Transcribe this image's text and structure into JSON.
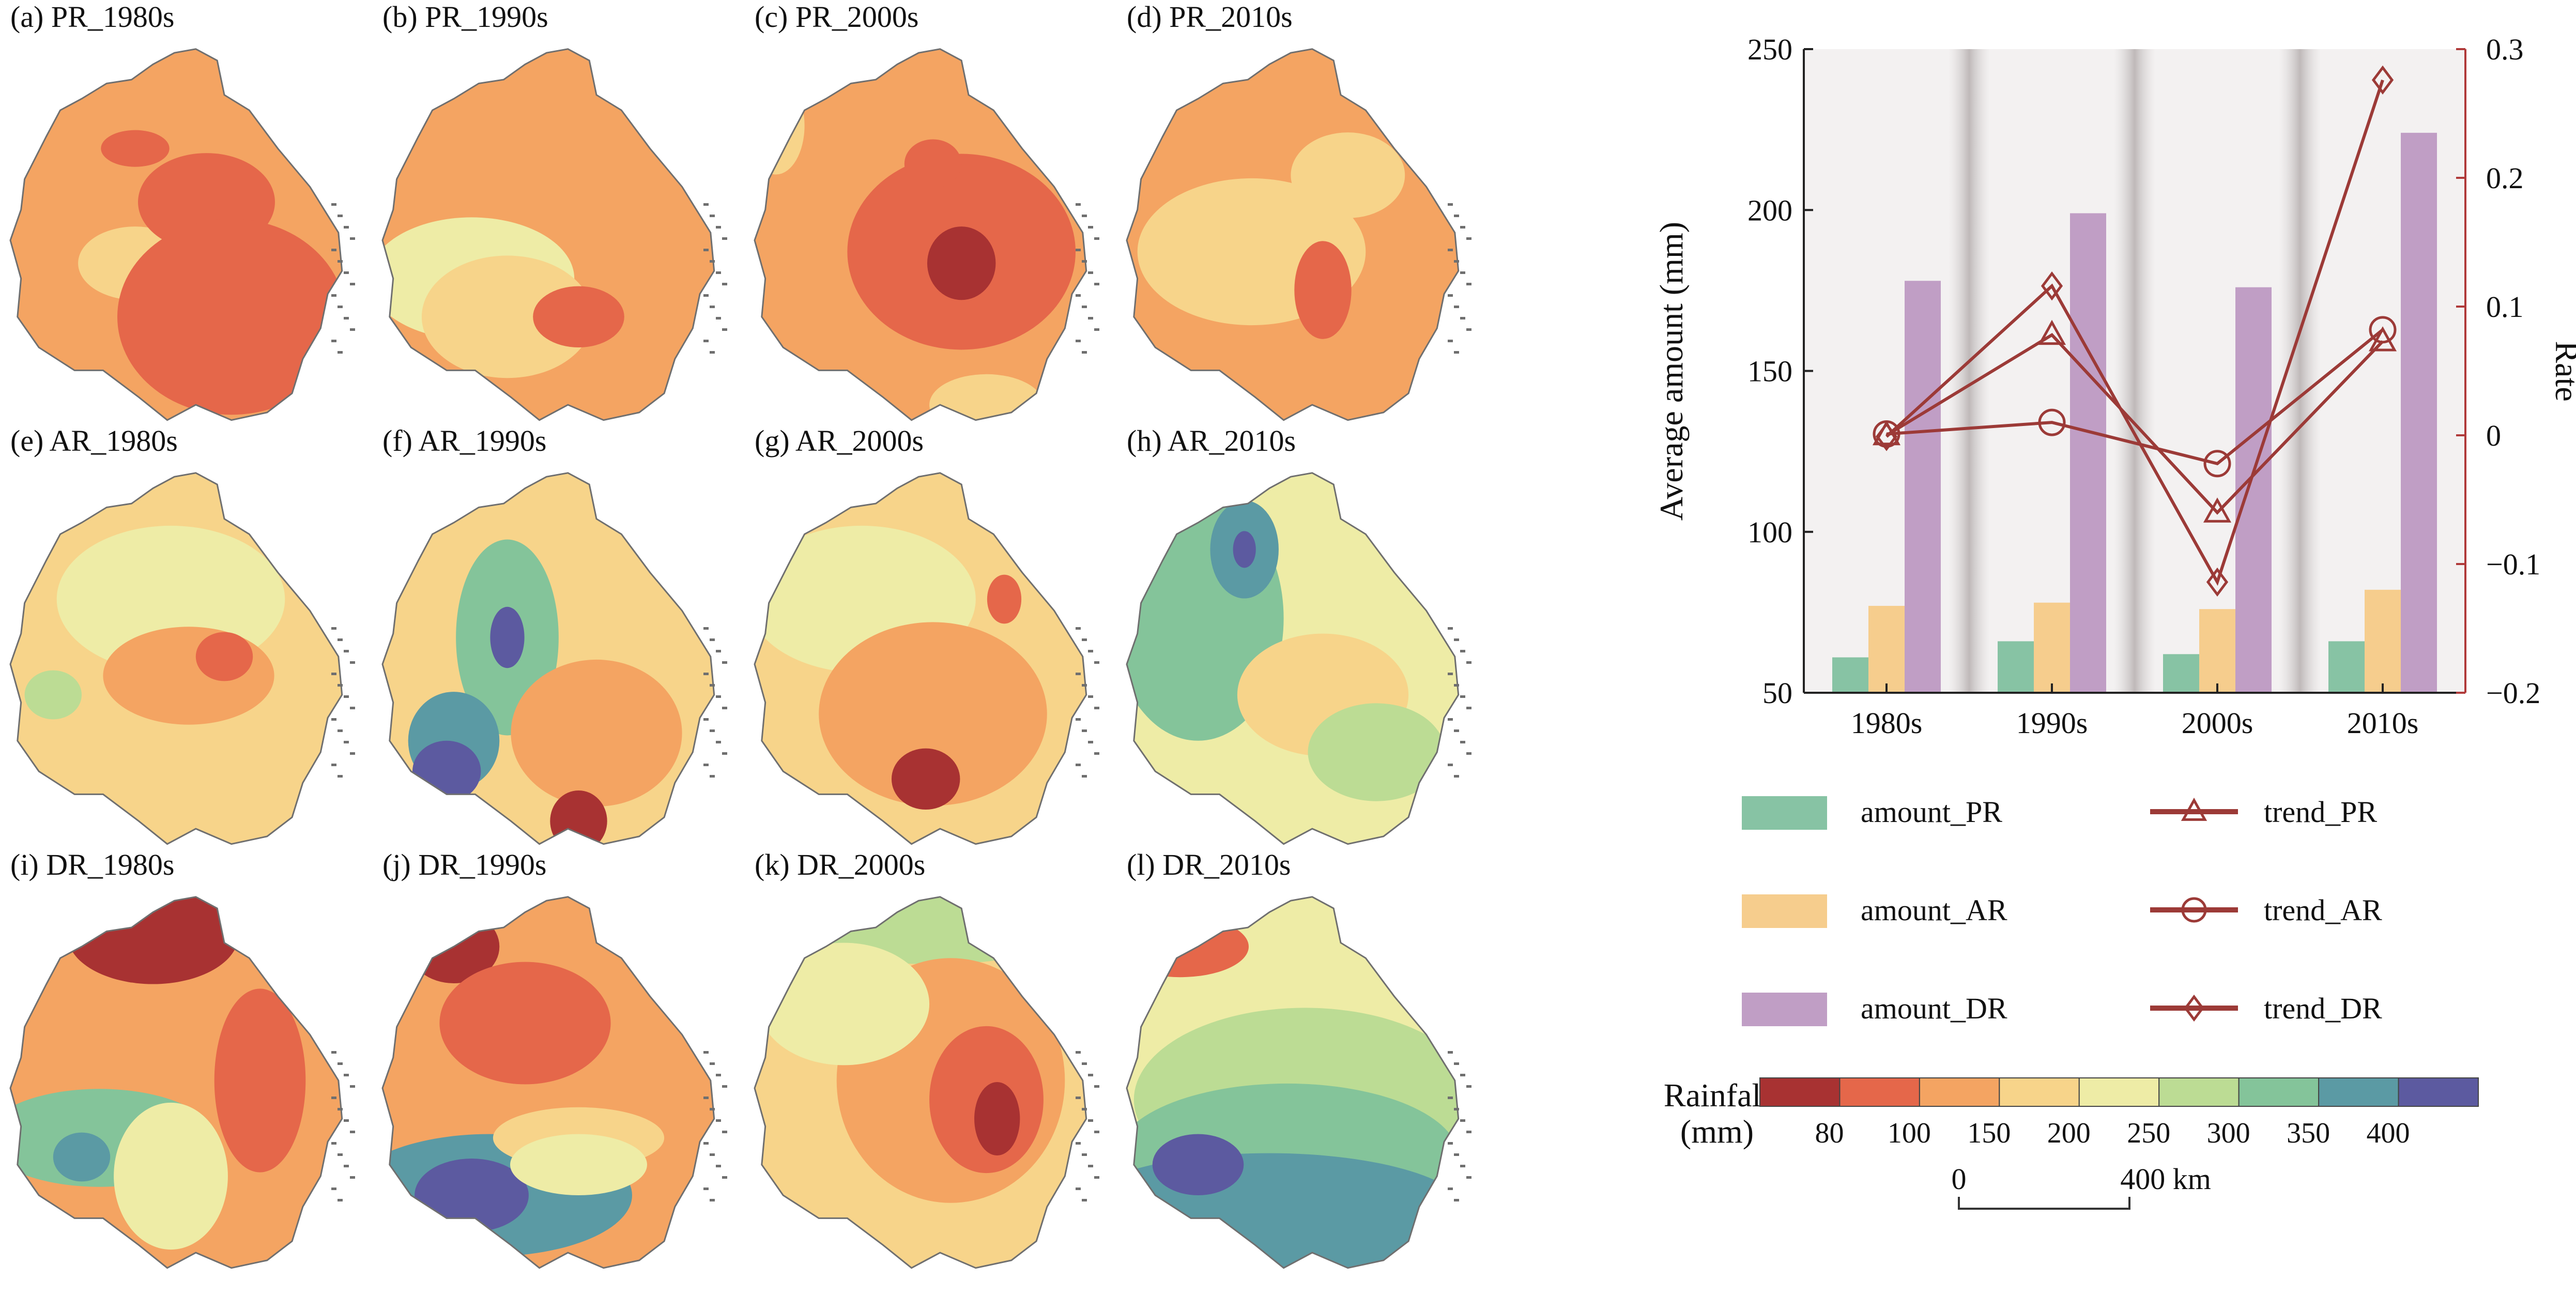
{
  "panels": [
    {
      "label": "(a) PR_1980s",
      "period": "PR",
      "decade": "1980s"
    },
    {
      "label": "(b) PR_1990s",
      "period": "PR",
      "decade": "1990s"
    },
    {
      "label": "(c) PR_2000s",
      "period": "PR",
      "decade": "2000s"
    },
    {
      "label": "(d) PR_2010s",
      "period": "PR",
      "decade": "2010s"
    },
    {
      "label": "(e) AR_1980s",
      "period": "AR",
      "decade": "1980s"
    },
    {
      "label": "(f) AR_1990s",
      "period": "AR",
      "decade": "1990s"
    },
    {
      "label": "(g) AR_2000s",
      "period": "AR",
      "decade": "2000s"
    },
    {
      "label": "(h) AR_2010s",
      "period": "AR",
      "decade": "2010s"
    },
    {
      "label": "(i) DR_1980s",
      "period": "DR",
      "decade": "1980s"
    },
    {
      "label": "(j) DR_1990s",
      "period": "DR",
      "decade": "1990s"
    },
    {
      "label": "(k) DR_2000s",
      "period": "DR",
      "decade": "2000s"
    },
    {
      "label": "(l) DR_2010s",
      "period": "DR",
      "decade": "2010s"
    }
  ],
  "colorbar": {
    "title_line1": "Rainfall",
    "title_line2": "(mm)",
    "colors": [
      "#a83232",
      "#e5674a",
      "#f4a462",
      "#f7d48a",
      "#eeeca6",
      "#bcdc94",
      "#84c49a",
      "#5b9aa4",
      "#5c5aa0"
    ],
    "ticks": [
      "80",
      "100",
      "150",
      "200",
      "250",
      "300",
      "350",
      "400"
    ]
  },
  "scalebar": {
    "left_label": "0",
    "right_label": "400 km"
  },
  "chart_data": {
    "type": "bar",
    "categories": [
      "1980s",
      "1990s",
      "2000s",
      "2010s"
    ],
    "ylabel": "Average amount (mm)",
    "y2label": "Rate",
    "ylim": [
      50,
      250
    ],
    "y2lim": [
      -0.2,
      0.3
    ],
    "yticks": [
      "50",
      "100",
      "150",
      "200",
      "250"
    ],
    "y2ticks": [
      "−0.2",
      "−0.1",
      "0",
      "0.1",
      "0.2",
      "0.3"
    ],
    "series": [
      {
        "name": "amount_PR",
        "type": "bar",
        "axis": "left",
        "color": "#87c3a4",
        "values": [
          61,
          66,
          62,
          66
        ]
      },
      {
        "name": "amount_AR",
        "type": "bar",
        "axis": "left",
        "color": "#f6cd8d",
        "values": [
          77,
          78,
          76,
          82
        ]
      },
      {
        "name": "amount_DR",
        "type": "bar",
        "axis": "left",
        "color": "#c09ec5",
        "values": [
          178,
          199,
          176,
          224
        ]
      },
      {
        "name": "trend_PR",
        "type": "line",
        "axis": "right",
        "marker": "triangle",
        "color": "#9c3a37",
        "values": [
          0.0,
          0.078,
          -0.06,
          0.073
        ]
      },
      {
        "name": "trend_AR",
        "type": "line",
        "axis": "right",
        "marker": "circle",
        "color": "#9c3a37",
        "values": [
          0.001,
          0.01,
          -0.022,
          0.082
        ]
      },
      {
        "name": "trend_DR",
        "type": "line",
        "axis": "right",
        "marker": "diamond",
        "color": "#9c3a37",
        "values": [
          -0.001,
          0.116,
          -0.114,
          0.276
        ]
      }
    ],
    "legend_position": "bottom"
  },
  "colors": {
    "axis_right": "#b03a3a",
    "plot_bg": "#f3f1f1",
    "map_outline": "#6f6f6f"
  }
}
